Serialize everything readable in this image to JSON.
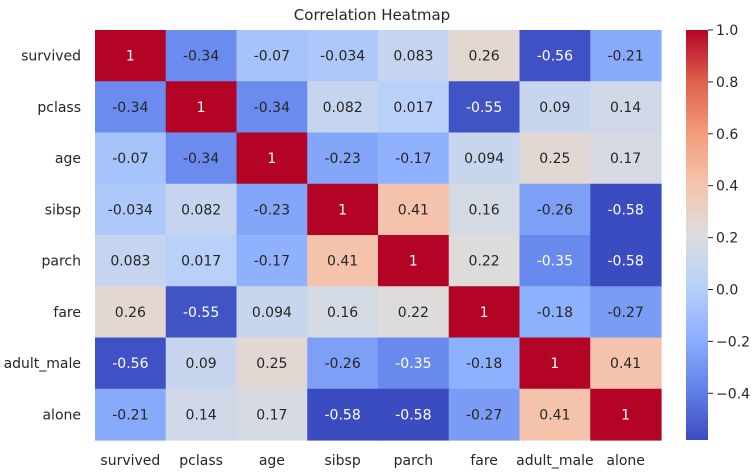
{
  "chart_data": {
    "type": "heatmap",
    "title": "Correlation Heatmap",
    "xlabel": "",
    "ylabel": "",
    "rows": [
      "survived",
      "pclass",
      "age",
      "sibsp",
      "parch",
      "fare",
      "adult_male",
      "alone"
    ],
    "columns": [
      "survived",
      "pclass",
      "age",
      "sibsp",
      "parch",
      "fare",
      "adult_male",
      "alone"
    ],
    "annotations": [
      [
        "1",
        "-0.34",
        "-0.07",
        "-0.034",
        "0.083",
        "0.26",
        "-0.56",
        "-0.21"
      ],
      [
        "-0.34",
        "1",
        "-0.34",
        "0.082",
        "0.017",
        "-0.55",
        "0.09",
        "0.14"
      ],
      [
        "-0.07",
        "-0.34",
        "1",
        "-0.23",
        "-0.17",
        "0.094",
        "0.25",
        "0.17"
      ],
      [
        "-0.034",
        "0.082",
        "-0.23",
        "1",
        "0.41",
        "0.16",
        "-0.26",
        "-0.58"
      ],
      [
        "0.083",
        "0.017",
        "-0.17",
        "0.41",
        "1",
        "0.22",
        "-0.35",
        "-0.58"
      ],
      [
        "0.26",
        "-0.55",
        "0.094",
        "0.16",
        "0.22",
        "1",
        "-0.18",
        "-0.27"
      ],
      [
        "-0.56",
        "0.09",
        "0.25",
        "-0.26",
        "-0.35",
        "-0.18",
        "1",
        "0.41"
      ],
      [
        "-0.21",
        "0.14",
        "0.17",
        "-0.58",
        "-0.58",
        "-0.27",
        "0.41",
        "1"
      ]
    ],
    "colormap": "coolwarm",
    "color_range": [
      -0.58,
      1.0
    ],
    "colorbar_ticks": [
      "1.0",
      "0.8",
      "0.6",
      "0.4",
      "0.2",
      "0.0",
      "−0.2",
      "−0.4"
    ],
    "grid": false,
    "colorbar_position": "right"
  }
}
